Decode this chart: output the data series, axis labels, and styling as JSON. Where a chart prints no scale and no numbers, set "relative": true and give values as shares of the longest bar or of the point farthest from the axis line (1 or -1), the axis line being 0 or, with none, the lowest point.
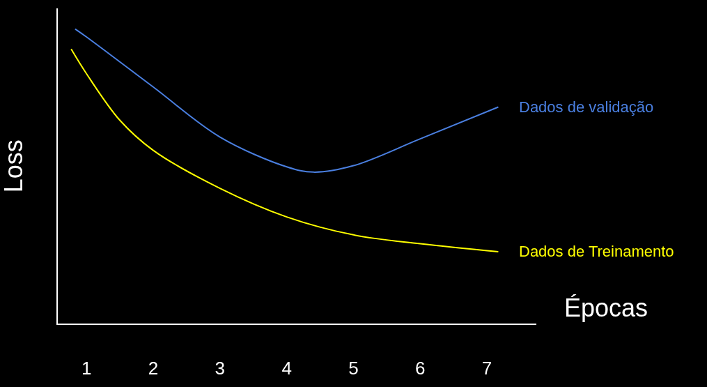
{
  "chart_data": {
    "type": "line",
    "xlabel": "Épocas",
    "ylabel": "Loss",
    "relative": true,
    "xlim": [
      0.57,
      7.74
    ],
    "xticks": [
      1,
      2,
      3,
      4,
      5,
      6,
      7
    ],
    "grid": false,
    "legend": false,
    "marker": "none",
    "line_style": "solid",
    "series": [
      {
        "name": "Dados de validação",
        "color": "#4a7fe0",
        "x": [
          0.83,
          1,
          2,
          3,
          4,
          4.4,
          5,
          6,
          7.17
        ],
        "values": [
          1.0,
          0.973,
          0.803,
          0.633,
          0.532,
          0.514,
          0.536,
          0.627,
          0.735
        ]
      },
      {
        "name": "Dados de Treinamento",
        "color": "#ffff00",
        "x": [
          0.77,
          1,
          1.5,
          2,
          3,
          4,
          5,
          6,
          7.17
        ],
        "values": [
          0.932,
          0.848,
          0.69,
          0.588,
          0.459,
          0.362,
          0.301,
          0.271,
          0.244
        ]
      }
    ]
  }
}
